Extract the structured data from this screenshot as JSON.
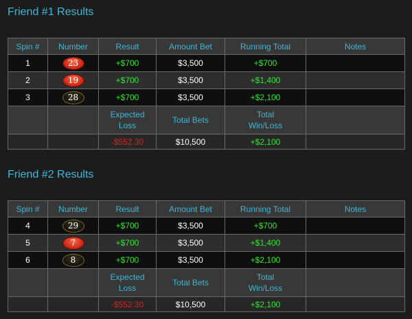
{
  "columns": [
    "Spin #",
    "Number",
    "Result",
    "Amount Bet",
    "Running Total",
    "Notes"
  ],
  "summary_labels": {
    "expected_loss_line1": "Expected",
    "expected_loss_line2": "Loss",
    "total_bets": "Total Bets",
    "total_winloss_line1": "Total",
    "total_winloss_line2": "Win/Loss"
  },
  "colors": {
    "title": "#3fb7d6",
    "positive": "#2ee82e",
    "negative": "#e02020",
    "red_ball": "#d8301c",
    "black_ball": "#1a1710"
  },
  "sections": [
    {
      "title": "Friend #1 Results",
      "rows": [
        {
          "spin": "1",
          "number": "23",
          "color": "red",
          "result": "+$700",
          "amount_bet": "$3,500",
          "running_total": "+$700",
          "notes": ""
        },
        {
          "spin": "2",
          "number": "19",
          "color": "red",
          "result": "+$700",
          "amount_bet": "$3,500",
          "running_total": "+$1,400",
          "notes": ""
        },
        {
          "spin": "3",
          "number": "28",
          "color": "black",
          "result": "+$700",
          "amount_bet": "$3,500",
          "running_total": "+$2,100",
          "notes": ""
        }
      ],
      "summary": {
        "expected_loss": "-$552.30",
        "total_bets": "$10,500",
        "total_winloss": "+$2,100"
      }
    },
    {
      "title": "Friend #2 Results",
      "rows": [
        {
          "spin": "4",
          "number": "29",
          "color": "black",
          "result": "+$700",
          "amount_bet": "$3,500",
          "running_total": "+$700",
          "notes": ""
        },
        {
          "spin": "5",
          "number": "7",
          "color": "red",
          "result": "+$700",
          "amount_bet": "$3,500",
          "running_total": "+$1,400",
          "notes": ""
        },
        {
          "spin": "6",
          "number": "8",
          "color": "black",
          "result": "+$700",
          "amount_bet": "$3,500",
          "running_total": "+$2,100",
          "notes": ""
        }
      ],
      "summary": {
        "expected_loss": "-$552.30",
        "total_bets": "$10,500",
        "total_winloss": "+$2,100"
      }
    }
  ]
}
